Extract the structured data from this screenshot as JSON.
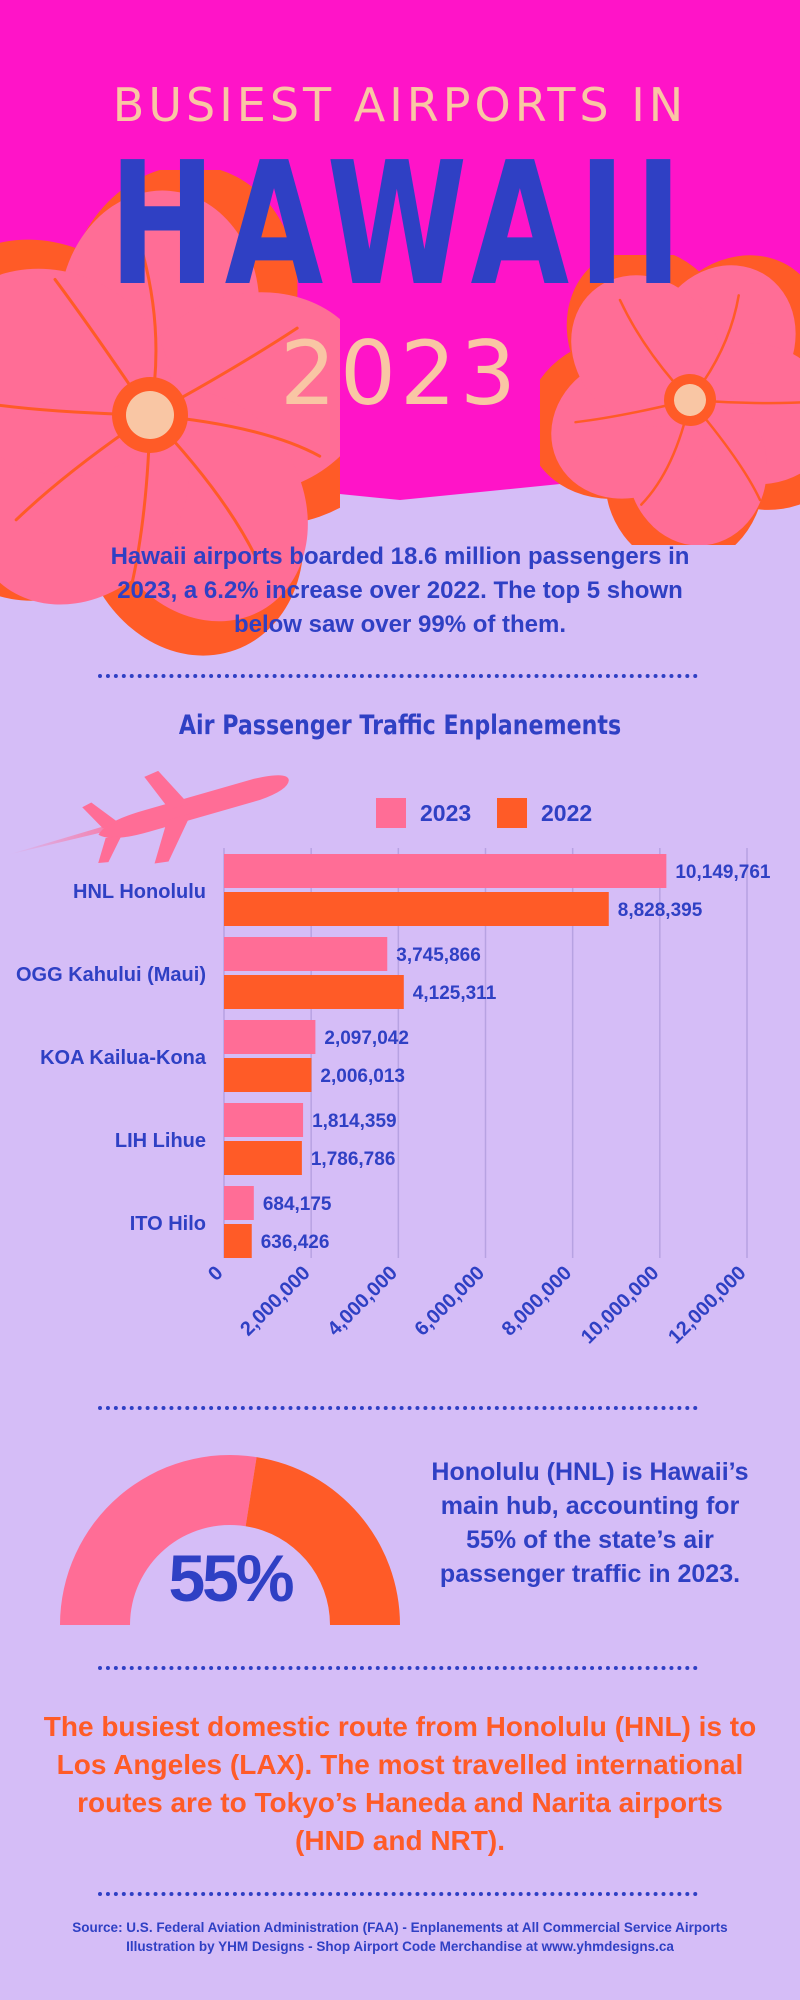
{
  "header": {
    "subtitle": "BUSIEST AIRPORTS IN",
    "title": "HAWAII",
    "year": "2023"
  },
  "intro": "Hawaii airports boarded 18.6 million passengers in 2023, a 6.2% increase over 2022. The top 5 shown below saw over 99% of them.",
  "colors": {
    "background": "#d5bdf7",
    "magenta": "#ff14c8",
    "blue": "#2f40c4",
    "pink": "#ff6d96",
    "orange": "#ff5b27",
    "peach": "#f9c6a4"
  },
  "icons": {
    "airplane": "airplane-icon",
    "flower": "hibiscus-flower"
  },
  "chart_data": {
    "type": "bar",
    "orientation": "horizontal",
    "title": "Air Passenger Traffic Enplanements",
    "categories": [
      "HNL Honolulu",
      "OGG Kahului (Maui)",
      "KOA Kailua-Kona",
      "LIH Lihue",
      "ITO Hilo"
    ],
    "series": [
      {
        "name": "2023",
        "color": "#ff6d96",
        "values": [
          10149761,
          3745866,
          2097042,
          1814359,
          684175
        ],
        "labels": [
          "10,149,761",
          "3,745,866",
          "2,097,042",
          "1,814,359",
          "684,175"
        ]
      },
      {
        "name": "2022",
        "color": "#ff5b27",
        "values": [
          8828395,
          4125311,
          2006013,
          1786786,
          636426
        ],
        "labels": [
          "8,828,395",
          "4,125,311",
          "2,006,013",
          "1,786,786",
          "636,426"
        ]
      }
    ],
    "xlim": [
      0,
      12000000
    ],
    "ticks": [
      0,
      2000000,
      4000000,
      6000000,
      8000000,
      10000000,
      12000000
    ],
    "tick_labels": [
      "0",
      "2,000,000",
      "4,000,000",
      "6,000,000",
      "8,000,000",
      "10,000,000",
      "12,000,000"
    ],
    "grid": true,
    "legend": "top-right"
  },
  "gauge": {
    "value": 55,
    "value_label": "55%",
    "text": "Honolulu (HNL) is Hawaii’s main hub, accounting for 55% of the state’s air passenger traffic in 2023."
  },
  "routes": "The busiest domestic route from Honolulu (HNL) is to Los Angeles (LAX). The most travelled international routes are to Tokyo’s Haneda and Narita airports (HND and NRT).",
  "footer": {
    "source": "Source: U.S. Federal Aviation Administration (FAA) - Enplanements at All Commercial Service Airports",
    "credit": "Illustration by YHM Designs - Shop Airport Code Merchandise at www.yhmdesigns.ca"
  }
}
